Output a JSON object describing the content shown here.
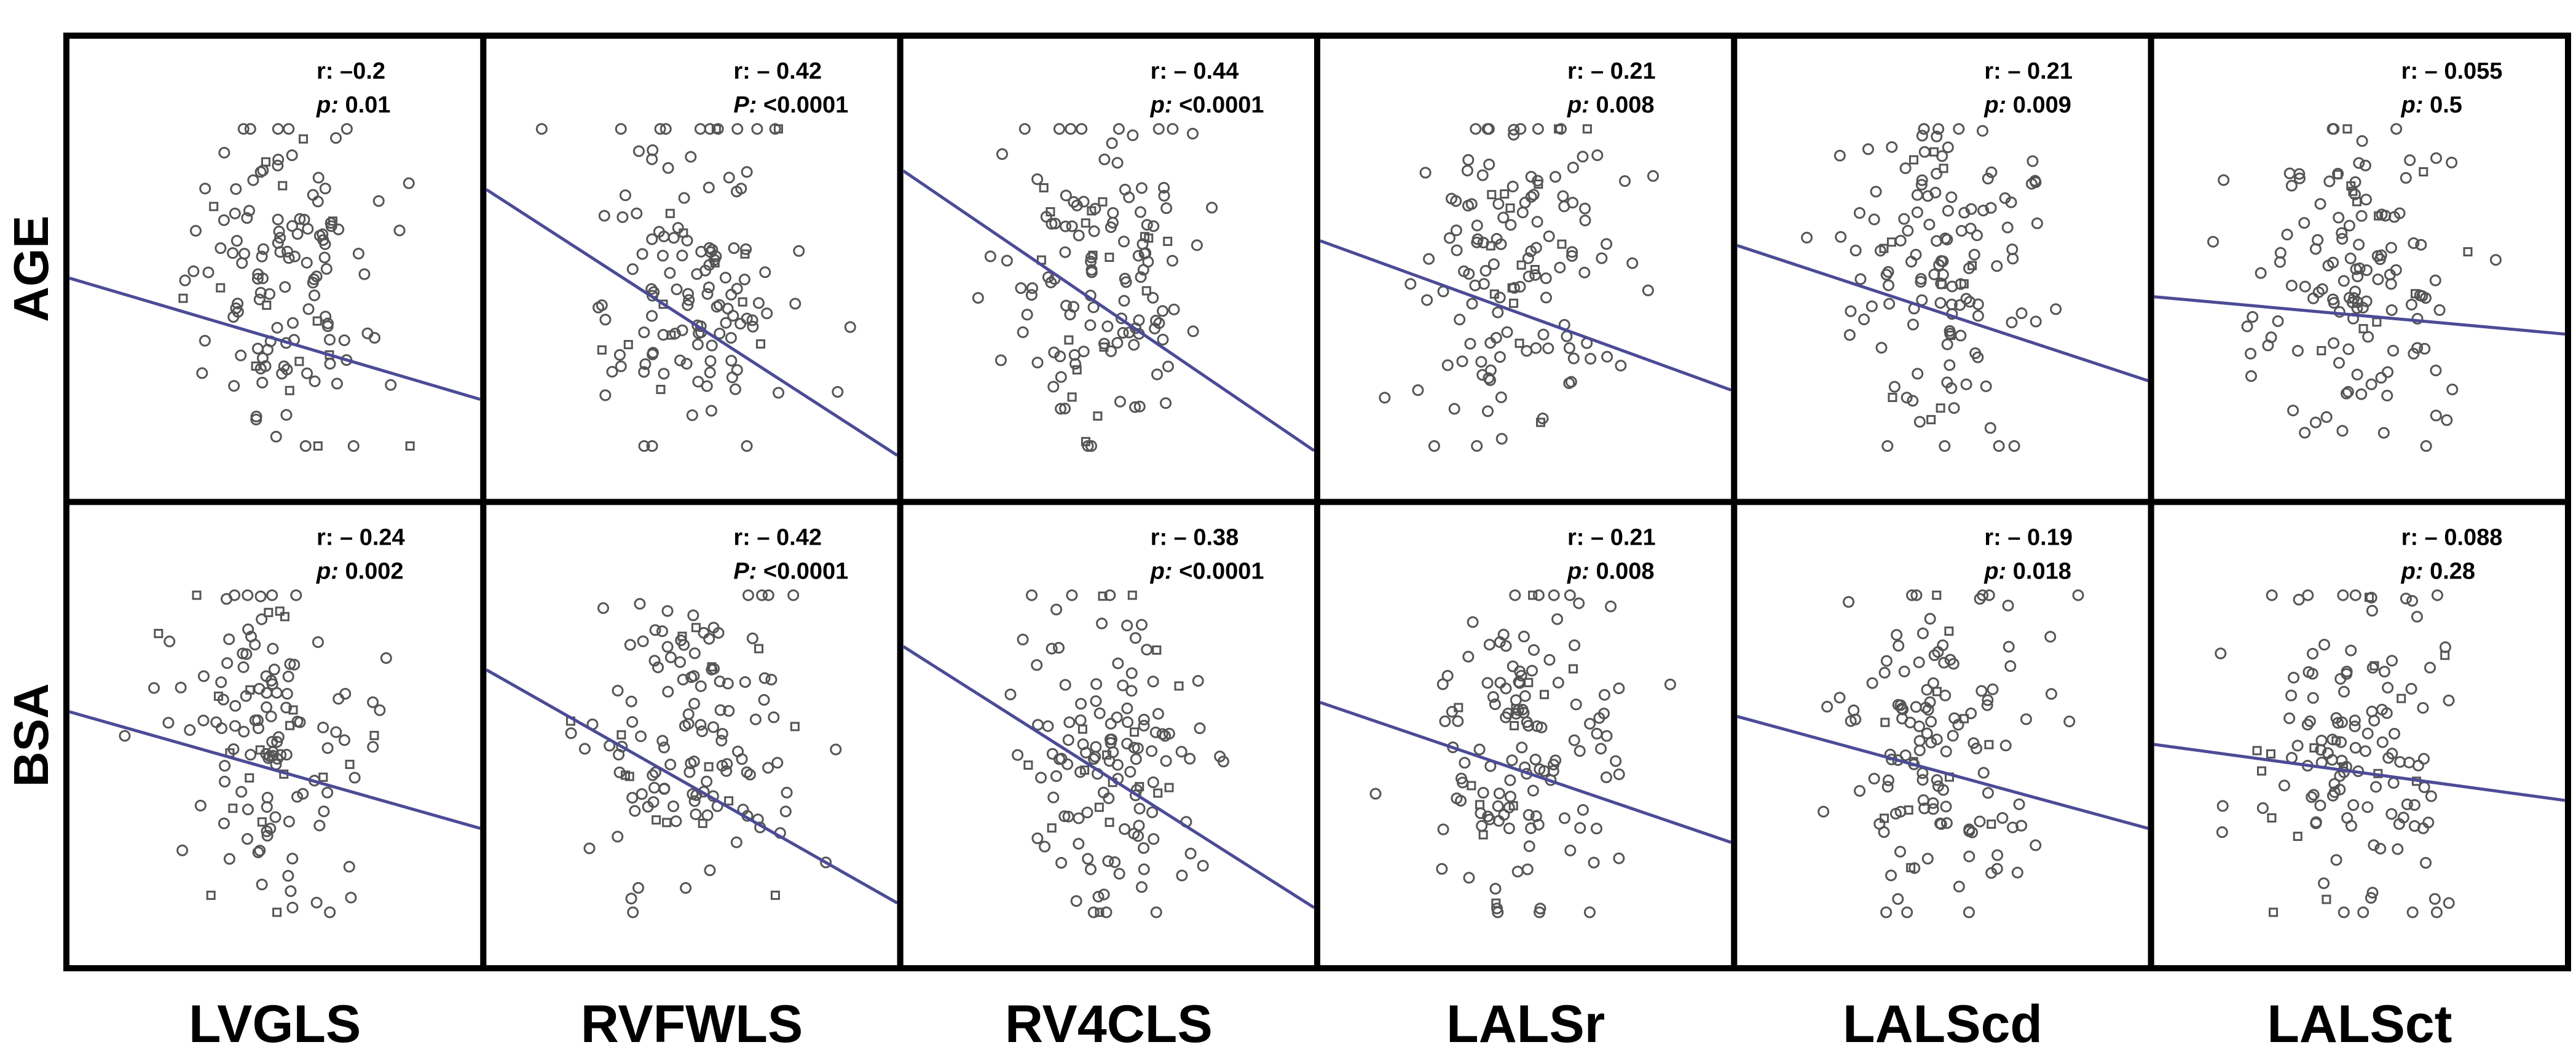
{
  "chart_data": {
    "type": "scatter",
    "description_note": "Grid of 12 scatter plots with linear regression lines; x = strain parameter (no numeric axes shown), y = AGE / BSA.",
    "rows": [
      "AGE",
      "BSA"
    ],
    "columns": [
      "LVGLS",
      "RVFWLS",
      "RV4CLS",
      "LALSr",
      "LALScd",
      "LALSct"
    ],
    "panels": [
      {
        "row": "AGE",
        "col": "LVGLS",
        "r_label": "r:",
        "r": "–0.2",
        "p_label": "p:",
        "p": "0.01",
        "trend": [
          0.52,
          0.78
        ],
        "points": 130
      },
      {
        "row": "AGE",
        "col": "RVFWLS",
        "r_label": "r:",
        "r": "– 0.42",
        "p_label": "P:",
        "p": "<0.0001",
        "trend": [
          0.33,
          0.9
        ],
        "points": 130
      },
      {
        "row": "AGE",
        "col": "RV4CLS",
        "r_label": "r:",
        "r": "– 0.44",
        "p_label": "p:",
        "p": "<0.0001",
        "trend": [
          0.29,
          0.89
        ],
        "points": 130
      },
      {
        "row": "AGE",
        "col": "LALSr",
        "r_label": "r:",
        "r": "– 0.21",
        "p_label": "p:",
        "p": "0.008",
        "trend": [
          0.44,
          0.76
        ],
        "points": 130
      },
      {
        "row": "AGE",
        "col": "LALScd",
        "r_label": "r:",
        "r": "– 0.21",
        "p_label": "p:",
        "p": "0.009",
        "trend": [
          0.45,
          0.74
        ],
        "points": 130
      },
      {
        "row": "AGE",
        "col": "LALSct",
        "r_label": "r:",
        "r": "– 0.055",
        "p_label": "p:",
        "p": "0.5",
        "trend": [
          0.56,
          0.64
        ],
        "points": 130
      },
      {
        "row": "BSA",
        "col": "LVGLS",
        "r_label": "r:",
        "r": "– 0.24",
        "p_label": "p:",
        "p": "0.002",
        "trend": [
          0.45,
          0.7
        ],
        "points": 130
      },
      {
        "row": "BSA",
        "col": "RVFWLS",
        "r_label": "r:",
        "r": "– 0.42",
        "p_label": "P:",
        "p": "<0.0001",
        "trend": [
          0.36,
          0.86
        ],
        "points": 130
      },
      {
        "row": "BSA",
        "col": "RV4CLS",
        "r_label": "r:",
        "r": "– 0.38",
        "p_label": "p:",
        "p": "<0.0001",
        "trend": [
          0.31,
          0.87
        ],
        "points": 130
      },
      {
        "row": "BSA",
        "col": "LALSr",
        "r_label": "r:",
        "r": "– 0.21",
        "p_label": "p:",
        "p": "0.008",
        "trend": [
          0.43,
          0.73
        ],
        "points": 130
      },
      {
        "row": "BSA",
        "col": "LALScd",
        "r_label": "r:",
        "r": "– 0.19",
        "p_label": "p:",
        "p": "0.018",
        "trend": [
          0.46,
          0.7
        ],
        "points": 130
      },
      {
        "row": "BSA",
        "col": "LALSct",
        "r_label": "r:",
        "r": "– 0.088",
        "p_label": "p:",
        "p": "0.28",
        "trend": [
          0.52,
          0.64
        ],
        "points": 130
      }
    ]
  },
  "colors": {
    "trend_line": "#4b4b96",
    "point_stroke": "#555555",
    "border": "#000000",
    "background": "#ffffff"
  }
}
